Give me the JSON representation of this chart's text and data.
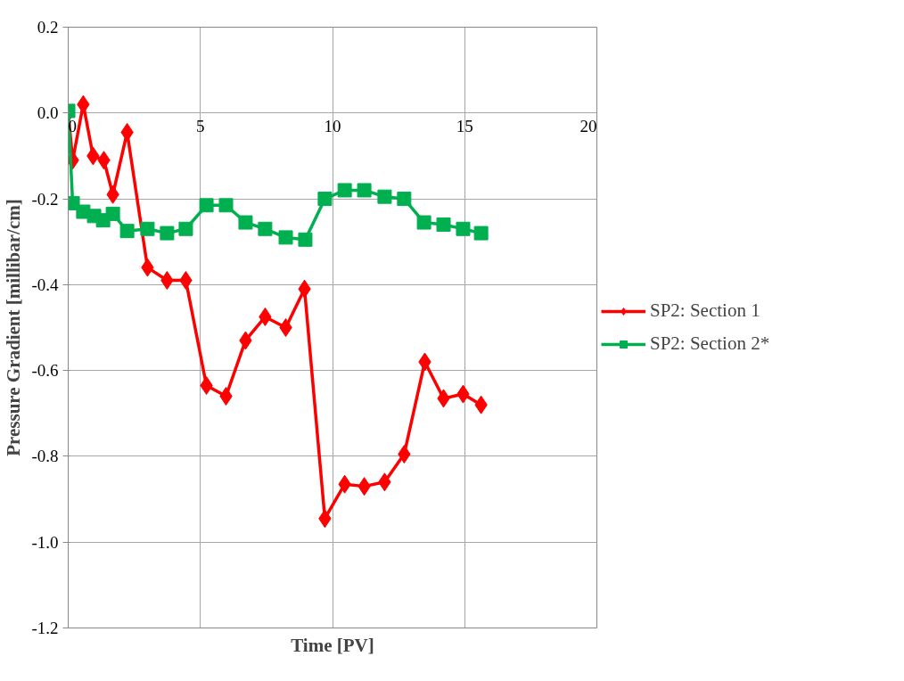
{
  "chart_data": {
    "type": "line",
    "xlabel": "Time [PV]",
    "ylabel": "Pressure Gradient [millibar/cm]",
    "xlim": [
      0,
      20
    ],
    "xticks": [
      0,
      5,
      10,
      15,
      20
    ],
    "ylim": [
      -1.2,
      0.2
    ],
    "yticks": [
      {
        "value": -1.2,
        "label": "-1.2"
      },
      {
        "value": -1.0,
        "label": "-1.0"
      },
      {
        "value": -0.8,
        "label": "-0.8"
      },
      {
        "value": -0.6,
        "label": "-0.6"
      },
      {
        "value": -0.4,
        "label": "-0.4"
      },
      {
        "value": -0.2,
        "label": "-0.2"
      },
      {
        "value": 0.0,
        "label": "0.0"
      },
      {
        "value": 0.2,
        "label": "0.2"
      }
    ],
    "grid": true,
    "legend": "right",
    "line_style": "solid",
    "series": [
      {
        "name": "SP2: Section 1",
        "color": "#ff0000",
        "marker": "diamond",
        "x": [
          0,
          0.17,
          0.57,
          0.94,
          1.35,
          1.69,
          2.23,
          3.0,
          3.74,
          4.45,
          5.23,
          5.97,
          6.71,
          7.45,
          8.23,
          8.94,
          9.71,
          10.46,
          11.2,
          11.97,
          12.71,
          13.49,
          14.2,
          14.94,
          15.62
        ],
        "values": [
          0.0,
          -0.11,
          0.02,
          -0.1,
          -0.11,
          -0.19,
          -0.045,
          -0.36,
          -0.39,
          -0.39,
          -0.635,
          -0.66,
          -0.53,
          -0.475,
          -0.5,
          -0.41,
          -0.945,
          -0.865,
          -0.87,
          -0.86,
          -0.795,
          -0.58,
          -0.665,
          -0.655,
          -0.68
        ]
      },
      {
        "name": "SP2: Section 2*",
        "color": "#00b050",
        "marker": "square",
        "x": [
          0,
          0.17,
          0.57,
          0.98,
          1.32,
          1.69,
          2.23,
          3.0,
          3.74,
          4.45,
          5.23,
          5.97,
          6.71,
          7.45,
          8.23,
          8.97,
          9.71,
          10.46,
          11.2,
          11.97,
          12.71,
          13.46,
          14.2,
          14.94,
          15.62
        ],
        "values": [
          0.005,
          -0.21,
          -0.23,
          -0.24,
          -0.25,
          -0.235,
          -0.275,
          -0.27,
          -0.28,
          -0.27,
          -0.215,
          -0.215,
          -0.255,
          -0.27,
          -0.29,
          -0.295,
          -0.2,
          -0.18,
          -0.18,
          -0.195,
          -0.2,
          -0.255,
          -0.26,
          -0.27,
          -0.28
        ]
      }
    ]
  }
}
